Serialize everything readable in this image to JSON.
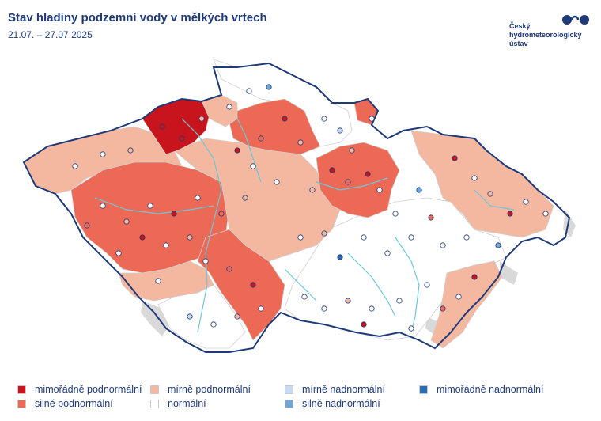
{
  "header": {
    "title": "Stav hladiny podzemní vody v mělkých vrtech",
    "date_range": "21.07. – 27.07.2025"
  },
  "logo": {
    "name_line1": "Český",
    "name_line2": "hydrometeorologický",
    "name_line3": "ústav",
    "icon": "chmi-logo-icon"
  },
  "legend": [
    {
      "label": "mimořádně podnormální",
      "color": "#c8141c"
    },
    {
      "label": "silně podnormální",
      "color": "#ec6a55"
    },
    {
      "label": "mírně podnormální",
      "color": "#f4b79f"
    },
    {
      "label": "normální",
      "color": "#ffffff"
    },
    {
      "label": "mírně nadnormální",
      "color": "#c6dbef"
    },
    {
      "label": "silně nadnormální",
      "color": "#6fa8d6"
    },
    {
      "label": "mimořádně nadnormální",
      "color": "#2b6bb2"
    }
  ],
  "colors": {
    "border": "#1f3a78",
    "river": "#6ec6d8",
    "neighbor": "#d6d6d6",
    "text": "#1f3a78"
  }
}
